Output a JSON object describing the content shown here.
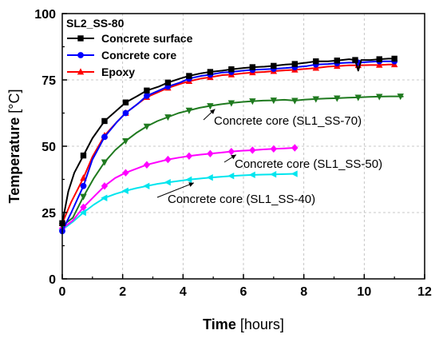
{
  "chart_data": {
    "type": "line",
    "title": "",
    "xlabel_bold": "Time",
    "xlabel_unit": "[hours]",
    "ylabel_bold": "Temperature",
    "ylabel_unit": "[°C]",
    "xlim": [
      0,
      12
    ],
    "ylim": [
      0,
      100
    ],
    "xticks": [
      0,
      2,
      4,
      6,
      8,
      10,
      12
    ],
    "yticks": [
      0,
      25,
      50,
      75,
      100
    ],
    "grid": true,
    "legend": {
      "title": "SL2_SS-80",
      "position": "top-left"
    },
    "series": [
      {
        "name": "Concrete surface",
        "color": "#000000",
        "marker": "square",
        "in_legend": true,
        "x": [
          0,
          0.2,
          0.4,
          0.7,
          1.0,
          1.4,
          1.8,
          2.1,
          2.5,
          2.8,
          3.2,
          3.5,
          3.9,
          4.2,
          4.6,
          4.9,
          5.3,
          5.6,
          6.0,
          6.3,
          6.7,
          7.0,
          7.4,
          7.7,
          8.1,
          8.4,
          8.8,
          9.1,
          9.5,
          9.7,
          9.8,
          9.9,
          10.2,
          10.5,
          10.8,
          11.0
        ],
        "y": [
          21,
          33,
          40,
          46.5,
          53,
          59.5,
          63.5,
          66.5,
          69,
          71,
          72.5,
          74,
          75.5,
          76.5,
          77.5,
          78,
          78.5,
          79,
          79.5,
          79.8,
          80,
          80.3,
          80.8,
          81,
          81.5,
          82,
          82,
          82.3,
          82.8,
          82.5,
          78.5,
          82.5,
          82.5,
          82.8,
          83,
          83
        ],
        "marker_x": [
          0,
          0.7,
          1.4,
          2.1,
          2.8,
          3.5,
          4.2,
          4.9,
          5.6,
          6.3,
          7.0,
          7.7,
          8.4,
          9.1,
          9.7,
          10.5,
          11.0
        ]
      },
      {
        "name": "Concrete core",
        "color": "#0000ff",
        "marker": "circle",
        "in_legend": true,
        "x": [
          0,
          0.3,
          0.7,
          1.0,
          1.4,
          1.8,
          2.1,
          2.5,
          2.8,
          3.2,
          3.5,
          3.9,
          4.2,
          4.6,
          4.9,
          5.3,
          5.6,
          6.0,
          6.3,
          6.7,
          7.0,
          7.4,
          7.7,
          8.1,
          8.4,
          8.8,
          9.1,
          9.5,
          9.8,
          10.2,
          10.5,
          10.8,
          11.0
        ],
        "y": [
          18,
          25,
          35,
          45,
          53.5,
          59,
          62.5,
          66,
          69,
          71,
          72.5,
          74,
          75.5,
          76.5,
          77,
          77.8,
          78,
          78.5,
          78.8,
          79,
          79.2,
          79.5,
          79.8,
          80.2,
          80.8,
          81,
          81.3,
          81.5,
          81.5,
          81.8,
          82,
          82,
          82
        ],
        "marker_x": [
          0,
          0.7,
          1.4,
          2.1,
          2.8,
          3.5,
          4.2,
          4.9,
          5.6,
          6.3,
          7.0,
          7.7,
          8.4,
          9.1,
          9.8,
          10.5,
          11.0
        ]
      },
      {
        "name": "Epoxy",
        "color": "#ff0000",
        "marker": "triangle-up",
        "in_legend": true,
        "x": [
          0,
          0.3,
          0.7,
          1.0,
          1.4,
          1.8,
          2.1,
          2.5,
          2.8,
          3.2,
          3.5,
          3.9,
          4.2,
          4.6,
          4.9,
          5.3,
          5.6,
          6.0,
          6.3,
          6.7,
          7.0,
          7.4,
          7.7,
          8.1,
          8.4,
          8.8,
          9.1,
          9.5,
          9.8,
          10.2,
          10.5,
          10.8,
          11.0
        ],
        "y": [
          21,
          29,
          38,
          46,
          54,
          59,
          62.5,
          66,
          68.5,
          70.5,
          72,
          73.5,
          74.5,
          75.5,
          76,
          76.8,
          77,
          77.5,
          77.8,
          78,
          78.3,
          78.6,
          78.8,
          79.2,
          79.5,
          80,
          80.2,
          80.5,
          80.5,
          80.6,
          80.6,
          80.8,
          80.8
        ],
        "marker_x": [
          0,
          0.7,
          1.4,
          2.1,
          2.8,
          3.5,
          4.2,
          4.9,
          5.6,
          6.3,
          7.0,
          7.7,
          8.4,
          9.1,
          9.8,
          10.5,
          11.0
        ]
      },
      {
        "name": "Concrete core (SL1_SS-70)",
        "color": "#1f7a1f",
        "marker": "triangle-down",
        "in_legend": false,
        "x": [
          0,
          0.35,
          0.7,
          1.05,
          1.4,
          1.75,
          2.1,
          2.45,
          2.8,
          3.15,
          3.5,
          3.85,
          4.2,
          4.55,
          4.9,
          5.25,
          5.6,
          5.95,
          6.3,
          6.65,
          7.0,
          7.35,
          7.7,
          8.05,
          8.4,
          8.75,
          9.1,
          9.45,
          9.8,
          10.15,
          10.5,
          10.85,
          11.2,
          11.3
        ],
        "y": [
          20,
          23,
          31,
          38,
          44,
          48.5,
          52,
          55,
          57.5,
          59.5,
          61,
          62.5,
          63.5,
          64.5,
          65.2,
          65.8,
          66.3,
          66.7,
          67,
          67.2,
          67.3,
          67.5,
          67.2,
          67.6,
          67.8,
          68,
          68.1,
          68.3,
          68.4,
          68.6,
          68.7,
          68.8,
          68.8,
          68.7
        ],
        "marker_x": [
          0,
          0.7,
          1.4,
          2.1,
          2.8,
          3.5,
          4.2,
          4.9,
          5.6,
          6.3,
          7.0,
          7.7,
          8.4,
          9.1,
          9.8,
          10.5,
          11.2
        ]
      },
      {
        "name": "Concrete core (SL1_SS-50)",
        "color": "#ff00ff",
        "marker": "diamond",
        "in_legend": false,
        "x": [
          0,
          0.35,
          0.7,
          1.05,
          1.4,
          1.75,
          2.1,
          2.45,
          2.8,
          3.15,
          3.5,
          3.85,
          4.2,
          4.55,
          4.9,
          5.25,
          5.6,
          5.95,
          6.3,
          6.65,
          7.0,
          7.35,
          7.7
        ],
        "y": [
          19,
          22,
          27,
          31,
          35,
          38,
          40,
          41.5,
          43,
          44,
          45,
          45.7,
          46.3,
          46.8,
          47.2,
          47.6,
          48,
          48.3,
          48.5,
          48.8,
          49,
          49.2,
          49.4
        ],
        "marker_x": [
          0,
          0.7,
          1.4,
          2.1,
          2.8,
          3.5,
          4.2,
          4.9,
          5.6,
          6.3,
          7.0,
          7.7
        ]
      },
      {
        "name": "Concrete core (SL1_SS-40)",
        "color": "#00e5ee",
        "marker": "triangle-left",
        "in_legend": false,
        "x": [
          0,
          0.35,
          0.7,
          1.05,
          1.4,
          1.75,
          2.1,
          2.45,
          2.8,
          3.15,
          3.5,
          3.85,
          4.2,
          4.55,
          4.9,
          5.25,
          5.6,
          5.95,
          6.3,
          6.65,
          7.0,
          7.35,
          7.7
        ],
        "y": [
          18.5,
          21.5,
          25,
          28,
          30.5,
          32,
          33.2,
          34.2,
          35,
          35.8,
          36.4,
          36.9,
          37.4,
          37.8,
          38.2,
          38.5,
          38.8,
          39,
          39.2,
          39.3,
          39.4,
          39.5,
          39.6
        ],
        "marker_x": [
          0,
          0.7,
          1.4,
          2.1,
          2.8,
          3.5,
          4.2,
          4.9,
          5.6,
          6.3,
          7.0,
          7.7
        ]
      }
    ],
    "annotations": [
      {
        "text": "Concrete core (SL1_SS-70)",
        "arrow_to": [
          4.9,
          65.2
        ]
      },
      {
        "text": "Concrete core (SL1_SS-50)",
        "arrow_to": [
          5.6,
          48
        ]
      },
      {
        "text": "Concrete core (SL1_SS-40)",
        "arrow_to": [
          4.2,
          37.4
        ]
      }
    ]
  }
}
